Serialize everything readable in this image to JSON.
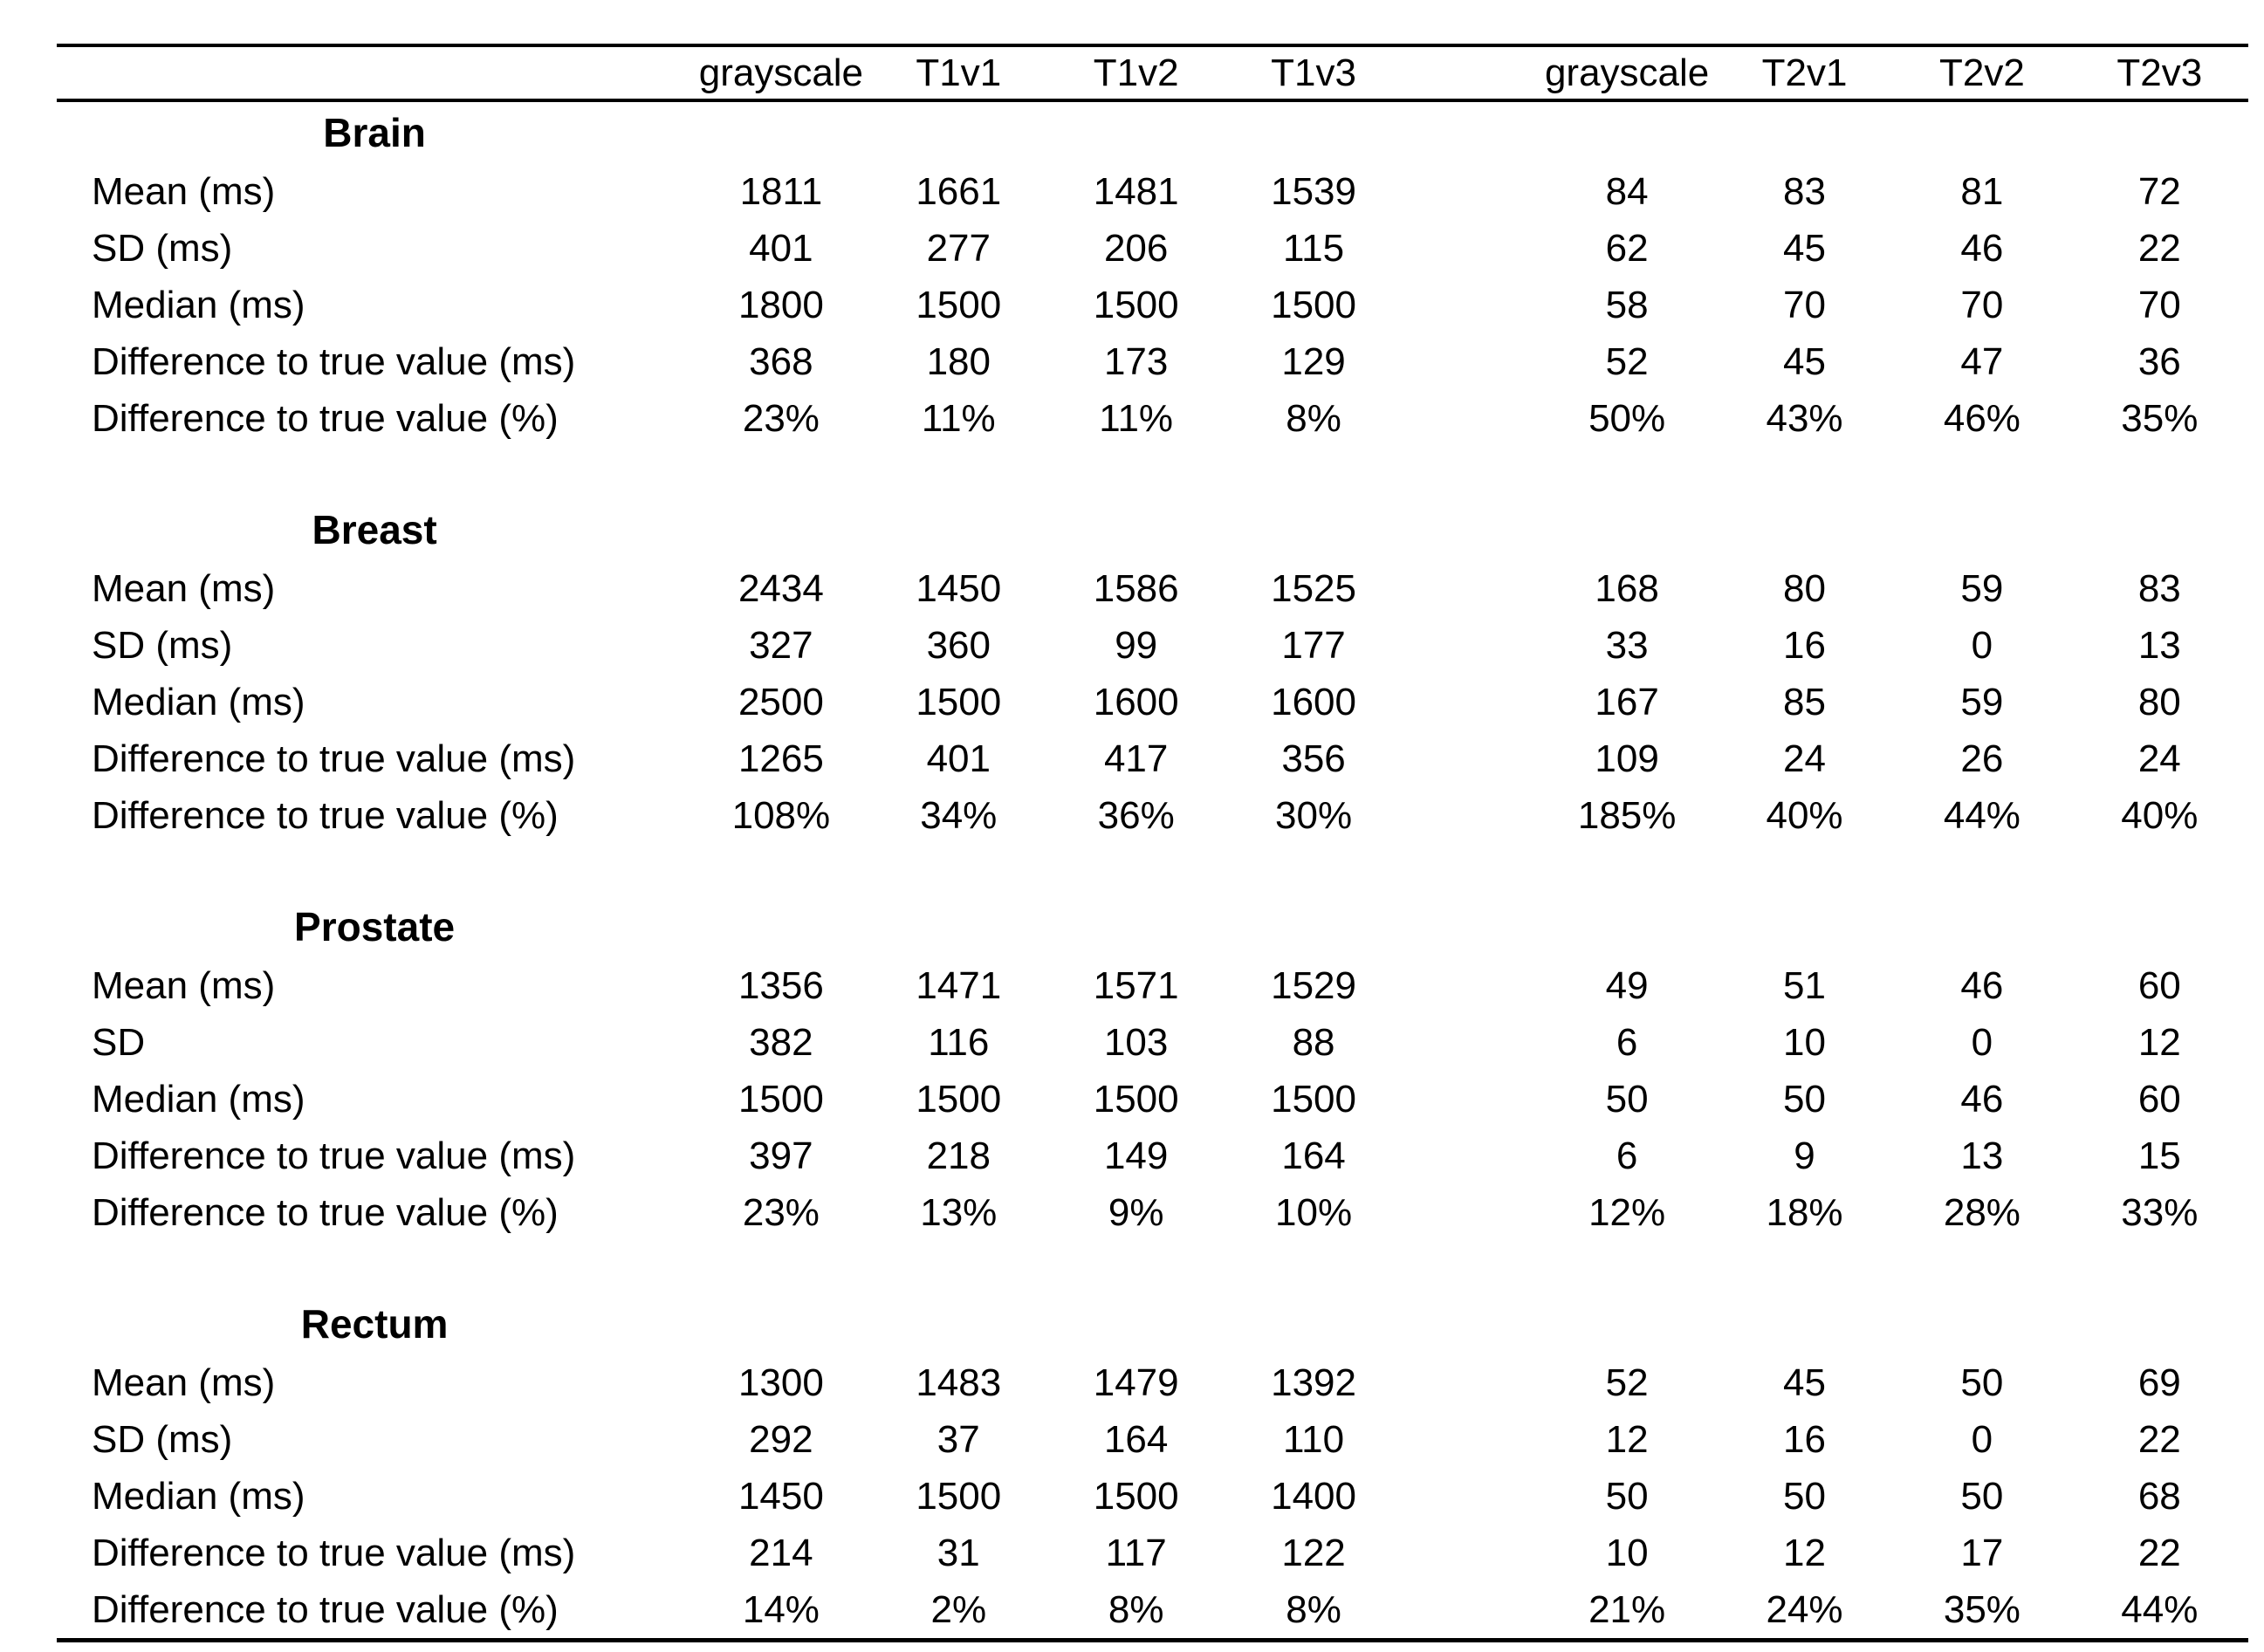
{
  "chart_data": {
    "type": "table",
    "title": "",
    "column_headers": [
      "grayscale",
      "T1v1",
      "T1v2",
      "T1v3",
      "grayscale",
      "T2v1",
      "T2v2",
      "T2v3"
    ],
    "sections": [
      {
        "title": "Brain",
        "rows": [
          {
            "label": "Mean (ms)",
            "values": [
              "1811",
              "1661",
              "1481",
              "1539",
              "84",
              "83",
              "81",
              "72"
            ]
          },
          {
            "label": "SD (ms)",
            "values": [
              "401",
              "277",
              "206",
              "115",
              "62",
              "45",
              "46",
              "22"
            ]
          },
          {
            "label": "Median (ms)",
            "values": [
              "1800",
              "1500",
              "1500",
              "1500",
              "58",
              "70",
              "70",
              "70"
            ]
          },
          {
            "label": "Difference to true value (ms)",
            "values": [
              "368",
              "180",
              "173",
              "129",
              "52",
              "45",
              "47",
              "36"
            ]
          },
          {
            "label": "Difference to true value (%)",
            "values": [
              "23%",
              "11%",
              "11%",
              "8%",
              "50%",
              "43%",
              "46%",
              "35%"
            ]
          }
        ]
      },
      {
        "title": "Breast",
        "rows": [
          {
            "label": "Mean (ms)",
            "values": [
              "2434",
              "1450",
              "1586",
              "1525",
              "168",
              "80",
              "59",
              "83"
            ]
          },
          {
            "label": "SD (ms)",
            "values": [
              "327",
              "360",
              "99",
              "177",
              "33",
              "16",
              "0",
              "13"
            ]
          },
          {
            "label": "Median (ms)",
            "values": [
              "2500",
              "1500",
              "1600",
              "1600",
              "167",
              "85",
              "59",
              "80"
            ]
          },
          {
            "label": "Difference to true value (ms)",
            "values": [
              "1265",
              "401",
              "417",
              "356",
              "109",
              "24",
              "26",
              "24"
            ]
          },
          {
            "label": "Difference to true value (%)",
            "values": [
              "108%",
              "34%",
              "36%",
              "30%",
              "185%",
              "40%",
              "44%",
              "40%"
            ]
          }
        ]
      },
      {
        "title": "Prostate",
        "rows": [
          {
            "label": "Mean (ms)",
            "values": [
              "1356",
              "1471",
              "1571",
              "1529",
              "49",
              "51",
              "46",
              "60"
            ]
          },
          {
            "label": "SD",
            "values": [
              "382",
              "116",
              "103",
              "88",
              "6",
              "10",
              "0",
              "12"
            ]
          },
          {
            "label": "Median (ms)",
            "values": [
              "1500",
              "1500",
              "1500",
              "1500",
              "50",
              "50",
              "46",
              "60"
            ]
          },
          {
            "label": "Difference to true value (ms)",
            "values": [
              "397",
              "218",
              "149",
              "164",
              "6",
              "9",
              "13",
              "15"
            ]
          },
          {
            "label": "Difference to true value (%)",
            "values": [
              "23%",
              "13%",
              "9%",
              "10%",
              "12%",
              "18%",
              "28%",
              "33%"
            ]
          }
        ]
      },
      {
        "title": "Rectum",
        "rows": [
          {
            "label": "Mean (ms)",
            "values": [
              "1300",
              "1483",
              "1479",
              "1392",
              "52",
              "45",
              "50",
              "69"
            ]
          },
          {
            "label": "SD (ms)",
            "values": [
              "292",
              "37",
              "164",
              "110",
              "12",
              "16",
              "0",
              "22"
            ]
          },
          {
            "label": "Median (ms)",
            "values": [
              "1450",
              "1500",
              "1500",
              "1400",
              "50",
              "50",
              "50",
              "68"
            ]
          },
          {
            "label": "Difference to true value (ms)",
            "values": [
              "214",
              "31",
              "117",
              "122",
              "10",
              "12",
              "17",
              "22"
            ]
          },
          {
            "label": "Difference to true value (%)",
            "values": [
              "14%",
              "2%",
              "8%",
              "8%",
              "21%",
              "24%",
              "35%",
              "44%"
            ]
          }
        ]
      }
    ]
  }
}
